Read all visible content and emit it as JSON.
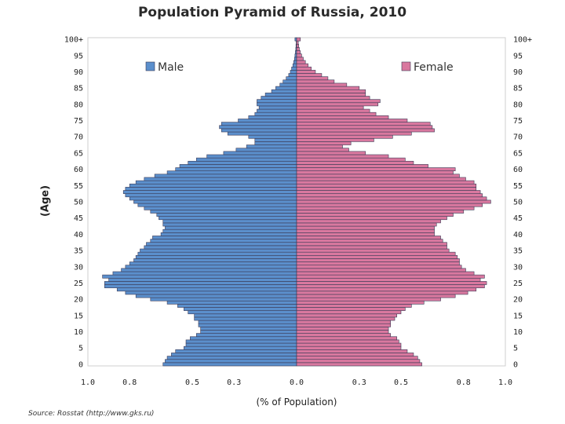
{
  "chart_data": {
    "type": "bar",
    "orientation": "horizontal-population-pyramid",
    "title": "Population Pyramid of Russia, 2010",
    "xlabel": "(% of Population)",
    "ylabel": "(Age)",
    "source": "Source: Rosstat (http://www.gks.ru)",
    "xlim": [
      -1.0,
      1.0
    ],
    "x_ticks": [
      -1.0,
      -0.8,
      -0.5,
      -0.3,
      0.0,
      0.3,
      0.5,
      0.8,
      1.0
    ],
    "x_tick_labels": [
      "1.0",
      "0.8",
      "0.5",
      "0.3",
      "0.0",
      "0.3",
      "0.5",
      "0.8",
      "1.0"
    ],
    "y_tick_labels": [
      "0",
      "5",
      "10",
      "15",
      "20",
      "25",
      "30",
      "35",
      "40",
      "45",
      "50",
      "55",
      "60",
      "65",
      "70",
      "75",
      "80",
      "85",
      "90",
      "95",
      "100+"
    ],
    "legend": {
      "placement": "top",
      "male": "Male",
      "female": "Female"
    },
    "colors": {
      "male": "#5b8fcc",
      "female": "#d9789f",
      "bar_edge": "#3a3a55",
      "background": "#ffffff"
    },
    "ages": [
      0,
      1,
      2,
      3,
      4,
      5,
      6,
      7,
      8,
      9,
      10,
      11,
      12,
      13,
      14,
      15,
      16,
      17,
      18,
      19,
      20,
      21,
      22,
      23,
      24,
      25,
      26,
      27,
      28,
      29,
      30,
      31,
      32,
      33,
      34,
      35,
      36,
      37,
      38,
      39,
      40,
      41,
      42,
      43,
      44,
      45,
      46,
      47,
      48,
      49,
      50,
      51,
      52,
      53,
      54,
      55,
      56,
      57,
      58,
      59,
      60,
      61,
      62,
      63,
      64,
      65,
      66,
      67,
      68,
      69,
      70,
      71,
      72,
      73,
      74,
      75,
      76,
      77,
      78,
      79,
      80,
      81,
      82,
      83,
      84,
      85,
      86,
      87,
      88,
      89,
      90,
      91,
      92,
      93,
      94,
      95,
      96,
      97,
      98,
      99,
      100
    ],
    "series": [
      {
        "name": "Male",
        "values": [
          0.64,
          0.63,
          0.62,
          0.6,
          0.58,
          0.54,
          0.53,
          0.53,
          0.51,
          0.48,
          0.46,
          0.46,
          0.47,
          0.47,
          0.49,
          0.49,
          0.52,
          0.54,
          0.57,
          0.62,
          0.7,
          0.77,
          0.82,
          0.86,
          0.92,
          0.92,
          0.9,
          0.93,
          0.88,
          0.84,
          0.82,
          0.8,
          0.78,
          0.77,
          0.76,
          0.75,
          0.73,
          0.72,
          0.7,
          0.69,
          0.65,
          0.64,
          0.63,
          0.64,
          0.64,
          0.66,
          0.67,
          0.7,
          0.73,
          0.76,
          0.78,
          0.8,
          0.82,
          0.83,
          0.82,
          0.8,
          0.77,
          0.73,
          0.68,
          0.62,
          0.58,
          0.56,
          0.52,
          0.48,
          0.43,
          0.35,
          0.29,
          0.24,
          0.2,
          0.2,
          0.23,
          0.33,
          0.36,
          0.37,
          0.36,
          0.28,
          0.23,
          0.2,
          0.19,
          0.18,
          0.19,
          0.19,
          0.17,
          0.15,
          0.12,
          0.1,
          0.08,
          0.065,
          0.05,
          0.038,
          0.03,
          0.024,
          0.018,
          0.014,
          0.01,
          0.008,
          0.006,
          0.004,
          0.003,
          0.002,
          0.008
        ]
      },
      {
        "name": "Female",
        "values": [
          0.6,
          0.59,
          0.58,
          0.56,
          0.53,
          0.5,
          0.5,
          0.49,
          0.48,
          0.45,
          0.44,
          0.44,
          0.45,
          0.45,
          0.47,
          0.48,
          0.5,
          0.52,
          0.55,
          0.61,
          0.69,
          0.76,
          0.82,
          0.86,
          0.9,
          0.91,
          0.88,
          0.9,
          0.85,
          0.81,
          0.79,
          0.78,
          0.78,
          0.77,
          0.76,
          0.73,
          0.72,
          0.72,
          0.7,
          0.69,
          0.66,
          0.66,
          0.66,
          0.67,
          0.69,
          0.72,
          0.75,
          0.8,
          0.85,
          0.89,
          0.93,
          0.91,
          0.89,
          0.88,
          0.86,
          0.86,
          0.85,
          0.81,
          0.78,
          0.75,
          0.76,
          0.63,
          0.56,
          0.52,
          0.44,
          0.33,
          0.25,
          0.22,
          0.26,
          0.37,
          0.46,
          0.55,
          0.66,
          0.65,
          0.64,
          0.53,
          0.44,
          0.38,
          0.35,
          0.32,
          0.39,
          0.4,
          0.35,
          0.33,
          0.33,
          0.3,
          0.24,
          0.18,
          0.15,
          0.12,
          0.09,
          0.07,
          0.055,
          0.042,
          0.032,
          0.024,
          0.018,
          0.013,
          0.01,
          0.008,
          0.018
        ]
      }
    ]
  }
}
